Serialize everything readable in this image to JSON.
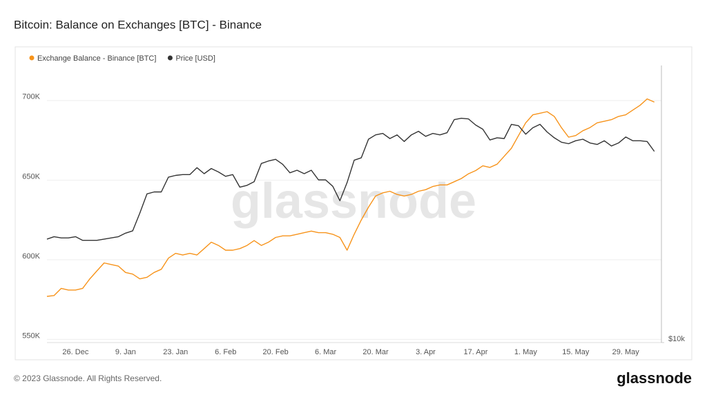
{
  "chart_data": {
    "type": "line",
    "title": "Bitcoin: Balance on Exchanges [BTC] - Binance",
    "x": [
      "18. Dec",
      "20. Dec",
      "22. Dec",
      "24. Dec",
      "26. Dec",
      "28. Dec",
      "30. Dec",
      "1. Jan",
      "3. Jan",
      "5. Jan",
      "7. Jan",
      "9. Jan",
      "11. Jan",
      "13. Jan",
      "15. Jan",
      "17. Jan",
      "19. Jan",
      "21. Jan",
      "23. Jan",
      "25. Jan",
      "27. Jan",
      "29. Jan",
      "31. Jan",
      "2. Feb",
      "4. Feb",
      "6. Feb",
      "8. Feb",
      "10. Feb",
      "12. Feb",
      "14. Feb",
      "16. Feb",
      "18. Feb",
      "20. Feb",
      "22. Feb",
      "24. Feb",
      "26. Feb",
      "28. Feb",
      "2. Mar",
      "4. Mar",
      "6. Mar",
      "8. Mar",
      "10. Mar",
      "12. Mar",
      "14. Mar",
      "16. Mar",
      "18. Mar",
      "20. Mar",
      "22. Mar",
      "24. Mar",
      "26. Mar",
      "28. Mar",
      "30. Mar",
      "1. Apr",
      "3. Apr",
      "5. Apr",
      "7. Apr",
      "9. Apr",
      "11. Apr",
      "13. Apr",
      "15. Apr",
      "17. Apr",
      "19. Apr",
      "21. Apr",
      "23. Apr",
      "25. Apr",
      "27. Apr",
      "29. Apr",
      "1. May",
      "3. May",
      "5. May",
      "7. May",
      "9. May",
      "11. May",
      "13. May",
      "15. May",
      "17. May",
      "19. May",
      "21. May",
      "23. May",
      "25. May",
      "27. May",
      "29. May",
      "31. May",
      "2. Jun",
      "4. Jun",
      "6. Jun"
    ],
    "xticks": [
      "26. Dec",
      "9. Jan",
      "23. Jan",
      "6. Feb",
      "20. Feb",
      "6. Mar",
      "20. Mar",
      "3. Apr",
      "17. Apr",
      "1. May",
      "15. May",
      "29. May"
    ],
    "series": [
      {
        "name": "Exchange Balance - Binance [BTC]",
        "color": "#f7931a",
        "axis": "y",
        "values": [
          577000,
          577500,
          582000,
          581000,
          581000,
          582000,
          588000,
          593000,
          598000,
          597000,
          596000,
          592000,
          591000,
          588000,
          589000,
          592000,
          594000,
          601000,
          604000,
          603000,
          604000,
          603000,
          607000,
          611000,
          609000,
          606000,
          606000,
          607000,
          609000,
          612000,
          609000,
          611000,
          614000,
          615000,
          615000,
          616000,
          617000,
          618000,
          617000,
          617000,
          616000,
          614000,
          606000,
          616000,
          625000,
          633000,
          640000,
          642000,
          643000,
          641000,
          640000,
          641000,
          643000,
          644000,
          646000,
          647000,
          647000,
          649000,
          651000,
          654000,
          656000,
          659000,
          658000,
          660000,
          665000,
          670000,
          678000,
          686000,
          691000,
          692000,
          693000,
          690000,
          683000,
          677000,
          678000,
          681000,
          683000,
          686000,
          687000,
          688000,
          690000,
          691000,
          694000,
          697000,
          701000,
          699000
        ]
      },
      {
        "name": "Price [USD]",
        "color": "#333333",
        "axis": "y2",
        "values": [
          16700,
          16900,
          16800,
          16800,
          16900,
          16600,
          16600,
          16600,
          16700,
          16800,
          16900,
          17200,
          17400,
          19000,
          20900,
          21100,
          21100,
          22700,
          22900,
          23000,
          23000,
          23800,
          23100,
          23700,
          23300,
          22800,
          23000,
          21600,
          21800,
          22200,
          24300,
          24600,
          24800,
          24200,
          23200,
          23500,
          23100,
          23500,
          22400,
          22400,
          21700,
          20200,
          22100,
          24700,
          25000,
          27400,
          28000,
          28200,
          27500,
          28000,
          27100,
          28000,
          28500,
          27800,
          28200,
          28000,
          28300,
          30200,
          30400,
          30300,
          29400,
          28800,
          27300,
          27600,
          27500,
          29500,
          29300,
          28100,
          29000,
          29500,
          28400,
          27600,
          27000,
          26800,
          27200,
          27400,
          26900,
          26700,
          27200,
          26500,
          26900,
          27700,
          27200,
          27200,
          27100,
          25800
        ]
      }
    ],
    "ylim": [
      548000,
      722000
    ],
    "yticks": [
      {
        "value": 550000,
        "label": "550K"
      },
      {
        "value": 600000,
        "label": "600K"
      },
      {
        "value": 650000,
        "label": "650K"
      },
      {
        "value": 700000,
        "label": "700K"
      }
    ],
    "y2lim": [
      10000,
      39500
    ],
    "y2scale": "log",
    "y2ticks": [
      {
        "value": 10000,
        "label": "$10k"
      }
    ],
    "grid": true,
    "legend": "top-left"
  },
  "watermark": "glassnode",
  "copyright": "© 2023 Glassnode. All Rights Reserved.",
  "brand": "glassnode"
}
